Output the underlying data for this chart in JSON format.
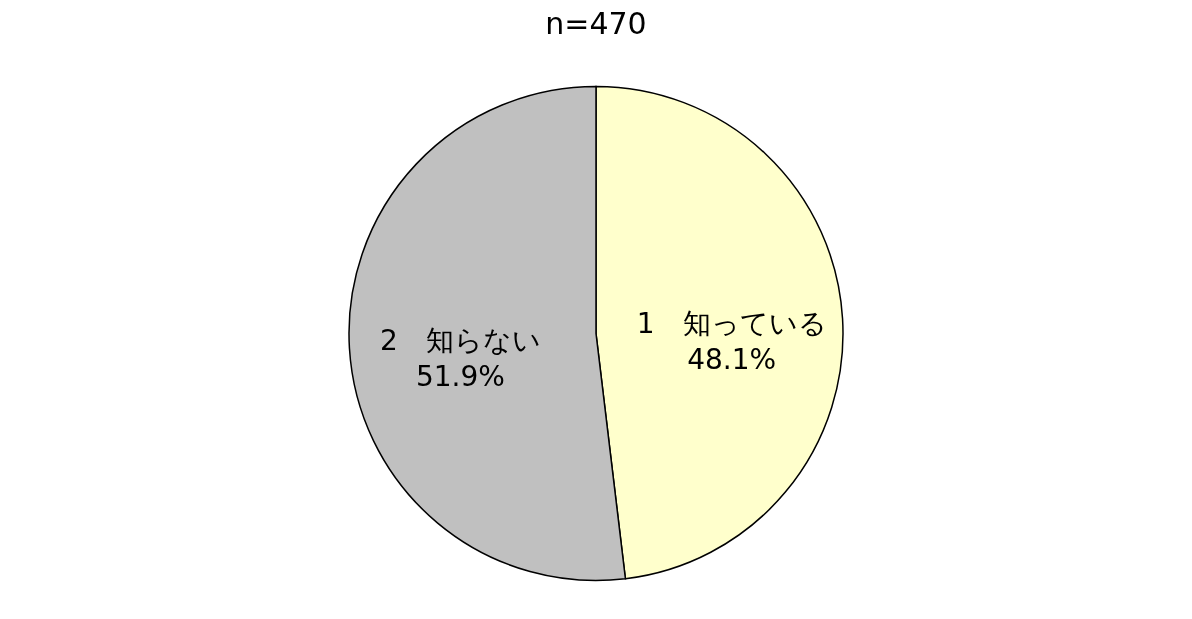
{
  "chart_data": {
    "type": "pie",
    "title": "n=470",
    "categories": [
      "1　知っている",
      "2　知らない"
    ],
    "values": [
      48.1,
      51.9
    ],
    "value_labels": [
      "48.1%",
      "51.9%"
    ],
    "colors": [
      "#ffffcc",
      "#c0c0c0"
    ],
    "legend": false
  }
}
